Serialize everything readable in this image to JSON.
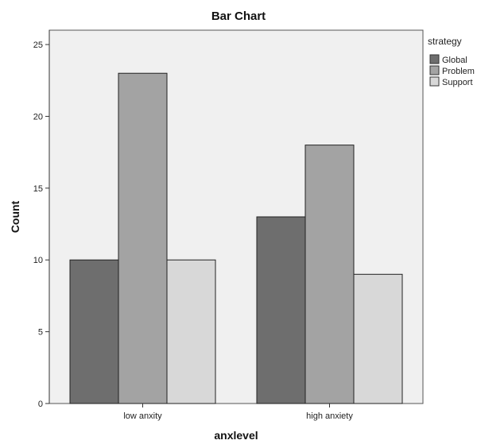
{
  "chart_data": {
    "type": "bar",
    "title": "Bar Chart",
    "xlabel": "anxlevel",
    "ylabel": "Count",
    "categories": [
      "low anxity",
      "high anxiety"
    ],
    "ylim": [
      0,
      26
    ],
    "yticks": [
      0,
      5,
      10,
      15,
      20,
      25
    ],
    "grid": false,
    "legend_title": "strategy",
    "legend_position": "top-right, outside plot",
    "series": [
      {
        "name": "Global",
        "values": [
          10,
          13
        ],
        "color": "#6e6e6e"
      },
      {
        "name": "Problem",
        "values": [
          23,
          18
        ],
        "color": "#a3a3a3"
      },
      {
        "name": "Support",
        "values": [
          10,
          9
        ],
        "color": "#d8d8d8"
      }
    ],
    "plot_background": "#f0f0f0",
    "bar_outline": "#222222"
  }
}
